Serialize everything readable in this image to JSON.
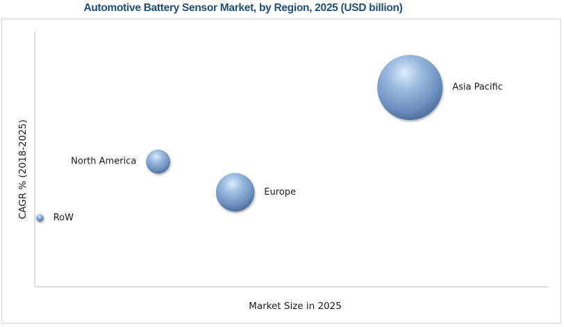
{
  "chart_data": {
    "type": "bubble",
    "title": "Automotive Battery Sensor Market, by Region, 2025 (USD billion)",
    "xlabel": "Market Size in 2025",
    "ylabel": "CAGR % (2018-2025)",
    "grid": false,
    "axis_ticks": false,
    "colors": {
      "bubble_fill": "#7ea3d0",
      "bubble_dark": "#4a6d9c",
      "bubble_highlight": "#dcecfb",
      "title": "#1f4e79",
      "axis": "#bfbfbf"
    },
    "points": [
      {
        "label": "Asia Pacific",
        "x": 0.73,
        "y": 0.78,
        "size": 1.0
      },
      {
        "label": "North America",
        "x": 0.24,
        "y": 0.49,
        "size": 0.31
      },
      {
        "label": "Europe",
        "x": 0.39,
        "y": 0.37,
        "size": 0.55
      },
      {
        "label": "RoW",
        "x": 0.01,
        "y": 0.27,
        "size": 0.03
      }
    ]
  }
}
